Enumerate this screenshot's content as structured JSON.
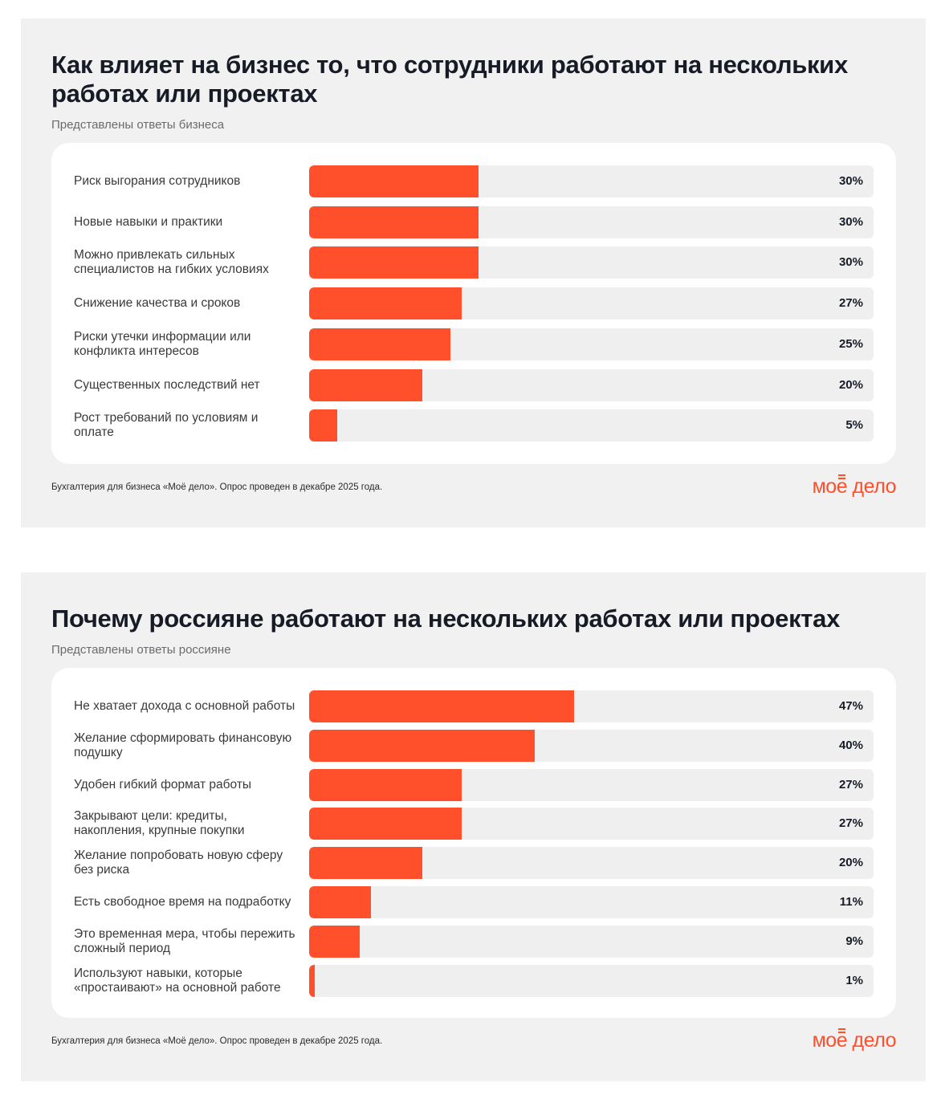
{
  "colors": {
    "accent": "#ff4f2b",
    "track": "#efefef",
    "panel": "#f1f1f1"
  },
  "logo": {
    "text": "моё дело"
  },
  "chart_data": [
    {
      "type": "bar",
      "orientation": "horizontal",
      "title": "Как влияет на бизнес то, что сотрудники работают на нескольких работах или проектах",
      "subtitle": "Представлены ответы бизнеса",
      "categories": [
        "Риск выгорания сотрудников",
        "Новые навыки и практики",
        "Можно привлекать сильных специалистов на гибких условиях",
        "Снижение качества и сроков",
        "Риски утечки информации или конфликта интересов",
        "Существенных последствий нет",
        "Рост требований по условиям и оплате"
      ],
      "values": [
        30,
        30,
        30,
        27,
        25,
        20,
        5
      ],
      "value_labels": [
        "30%",
        "30%",
        "30%",
        "27%",
        "25%",
        "20%",
        "5%"
      ],
      "xlim": [
        0,
        100
      ],
      "footnote": "Бухгалтерия для бизнеса «Моё дело». Опрос проведен в декабре 2025 года."
    },
    {
      "type": "bar",
      "orientation": "horizontal",
      "title": "Почему россияне работают на нескольких работах или проектах",
      "subtitle": "Представлены ответы россияне",
      "categories": [
        "Не хватает дохода с основной работы",
        "Желание сформировать финансовую подушку",
        "Удобен гибкий формат работы",
        "Закрывают цели: кредиты, накопления, крупные покупки",
        "Желание попробовать новую сферу без риска",
        "Есть свободное время на подработку",
        "Это временная мера, чтобы пережить сложный период",
        "Используют навыки, которые «простаивают» на основной работе"
      ],
      "values": [
        47,
        40,
        27,
        27,
        20,
        11,
        9,
        1
      ],
      "value_labels": [
        "47%",
        "40%",
        "27%",
        "27%",
        "20%",
        "11%",
        "9%",
        "1%"
      ],
      "xlim": [
        0,
        100
      ],
      "footnote": "Бухгалтерия для бизнеса «Моё дело». Опрос проведен в декабре 2025 года."
    }
  ]
}
